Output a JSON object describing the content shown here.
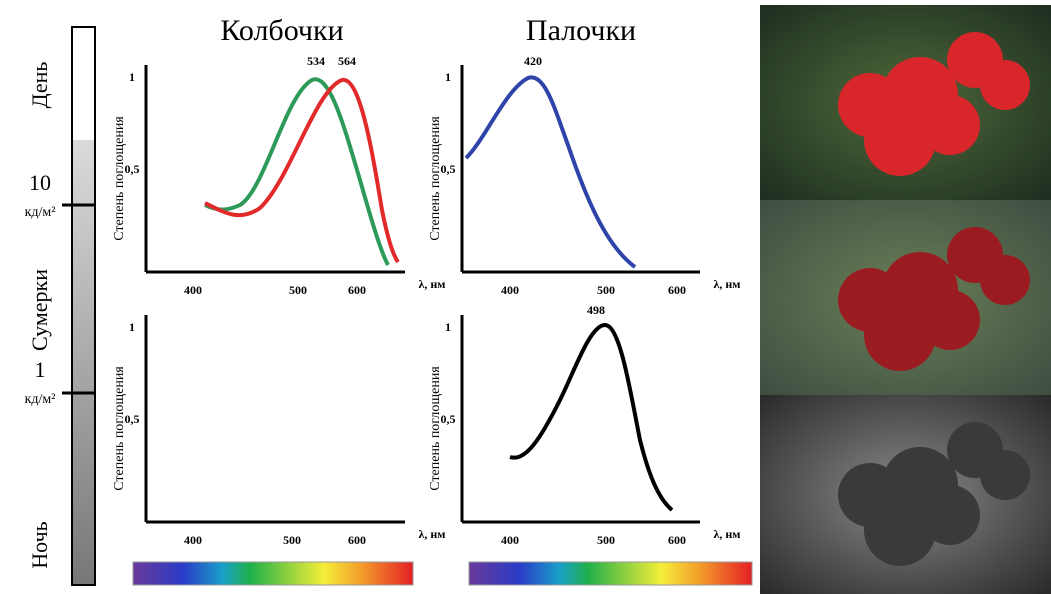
{
  "scale": {
    "day": "День",
    "lum_high": "10",
    "unit_high": "кд/м²",
    "twilight": "Сумерки",
    "lum_low": "1",
    "unit_low": "кд/м²",
    "night": "Ночь"
  },
  "titles": {
    "cones": "Колбочки",
    "rods": "Палочки"
  },
  "plots": [
    {
      "y_label": "Степень поглощения",
      "x_label": "λ, нм",
      "xticks": [
        "400",
        "500",
        "600"
      ],
      "yticks": [
        "1",
        "0,5"
      ],
      "peak_labels": [
        "534",
        "564"
      ]
    },
    {
      "y_label": "Степень поглощения",
      "x_label": "λ, нм",
      "xticks": [
        "400",
        "500",
        "600"
      ],
      "yticks": [
        "1",
        "0,5"
      ],
      "peak_labels": [
        "420"
      ]
    },
    {
      "y_label": "Степень поглощения",
      "x_label": "λ, нм",
      "xticks": [
        "400",
        "500",
        "600"
      ],
      "yticks": [
        "1",
        "0,5"
      ],
      "peak_labels": []
    },
    {
      "y_label": "Степень поглощения",
      "x_label": "λ, нм",
      "xticks": [
        "400",
        "500",
        "600"
      ],
      "yticks": [
        "1",
        "0,5"
      ],
      "peak_labels": [
        "498"
      ]
    }
  ]
}
